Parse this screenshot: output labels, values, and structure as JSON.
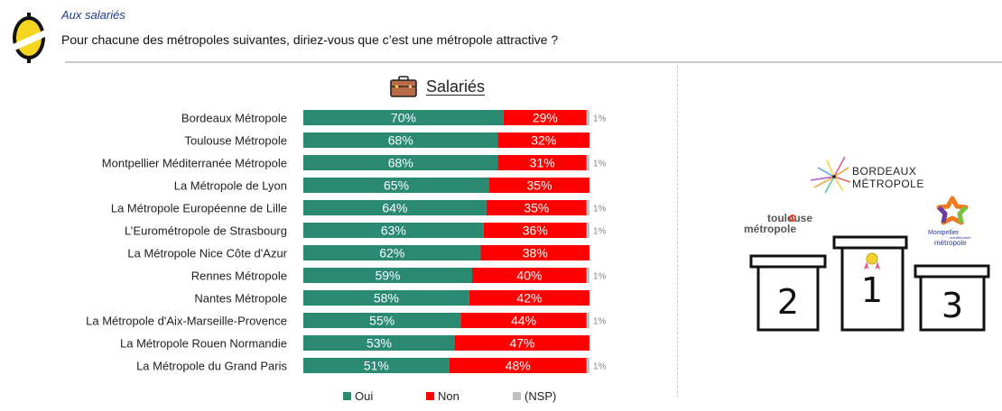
{
  "header": {
    "subtitle": "Aux salariés",
    "question": "Pour chacune des métropoles suivantes, diriez-vous que c’est une métropole attractive ?"
  },
  "colors": {
    "oui": "#2a8a72",
    "non": "#ff0000",
    "nsp": "#c0c0c0"
  },
  "chart_data": {
    "type": "bar",
    "orientation": "horizontal",
    "stacked": true,
    "title": "Salariés",
    "title_icon": "briefcase-icon",
    "categories": [
      "Bordeaux Métropole",
      "Toulouse Métropole",
      "Montpellier Méditerranée Métropole",
      "La Métropole de Lyon",
      "La Métropole Européenne de Lille",
      "L’Eurométropole de Strasbourg",
      "La Métropole Nice Côte d'Azur",
      "Rennes Métropole",
      "Nantes Métropole",
      "La Métropole d'Aix-Marseille-Provence",
      "La Métropole Rouen Normandie",
      "La Métropole du Grand Paris"
    ],
    "series": [
      {
        "name": "Oui",
        "values": [
          70,
          68,
          68,
          65,
          64,
          63,
          62,
          59,
          58,
          55,
          53,
          51
        ]
      },
      {
        "name": "Non",
        "values": [
          29,
          32,
          31,
          35,
          35,
          36,
          38,
          40,
          42,
          44,
          47,
          48
        ]
      },
      {
        "name": "(NSP)",
        "values": [
          1,
          0,
          1,
          0,
          1,
          1,
          0,
          1,
          0,
          1,
          0,
          1
        ]
      }
    ],
    "value_suffix": "%",
    "xlim": [
      0,
      100
    ],
    "legend": {
      "position": "bottom",
      "entries": [
        "Oui",
        "Non",
        "(NSP)"
      ]
    }
  },
  "podium": {
    "ranks": [
      {
        "rank": "1",
        "name": "BORDEAUX MÉTROPOLE",
        "line1": "BORDEAUX",
        "line2": "MÉTROPOLE"
      },
      {
        "rank": "2",
        "name": "toulouse métropole",
        "line1": "toulouse",
        "line2": "métropole"
      },
      {
        "rank": "3",
        "name": "Montpellier Méditerranée Métropole",
        "line1": "Montpellier",
        "line_small": "méditerranée",
        "line2": "métropole"
      }
    ]
  }
}
